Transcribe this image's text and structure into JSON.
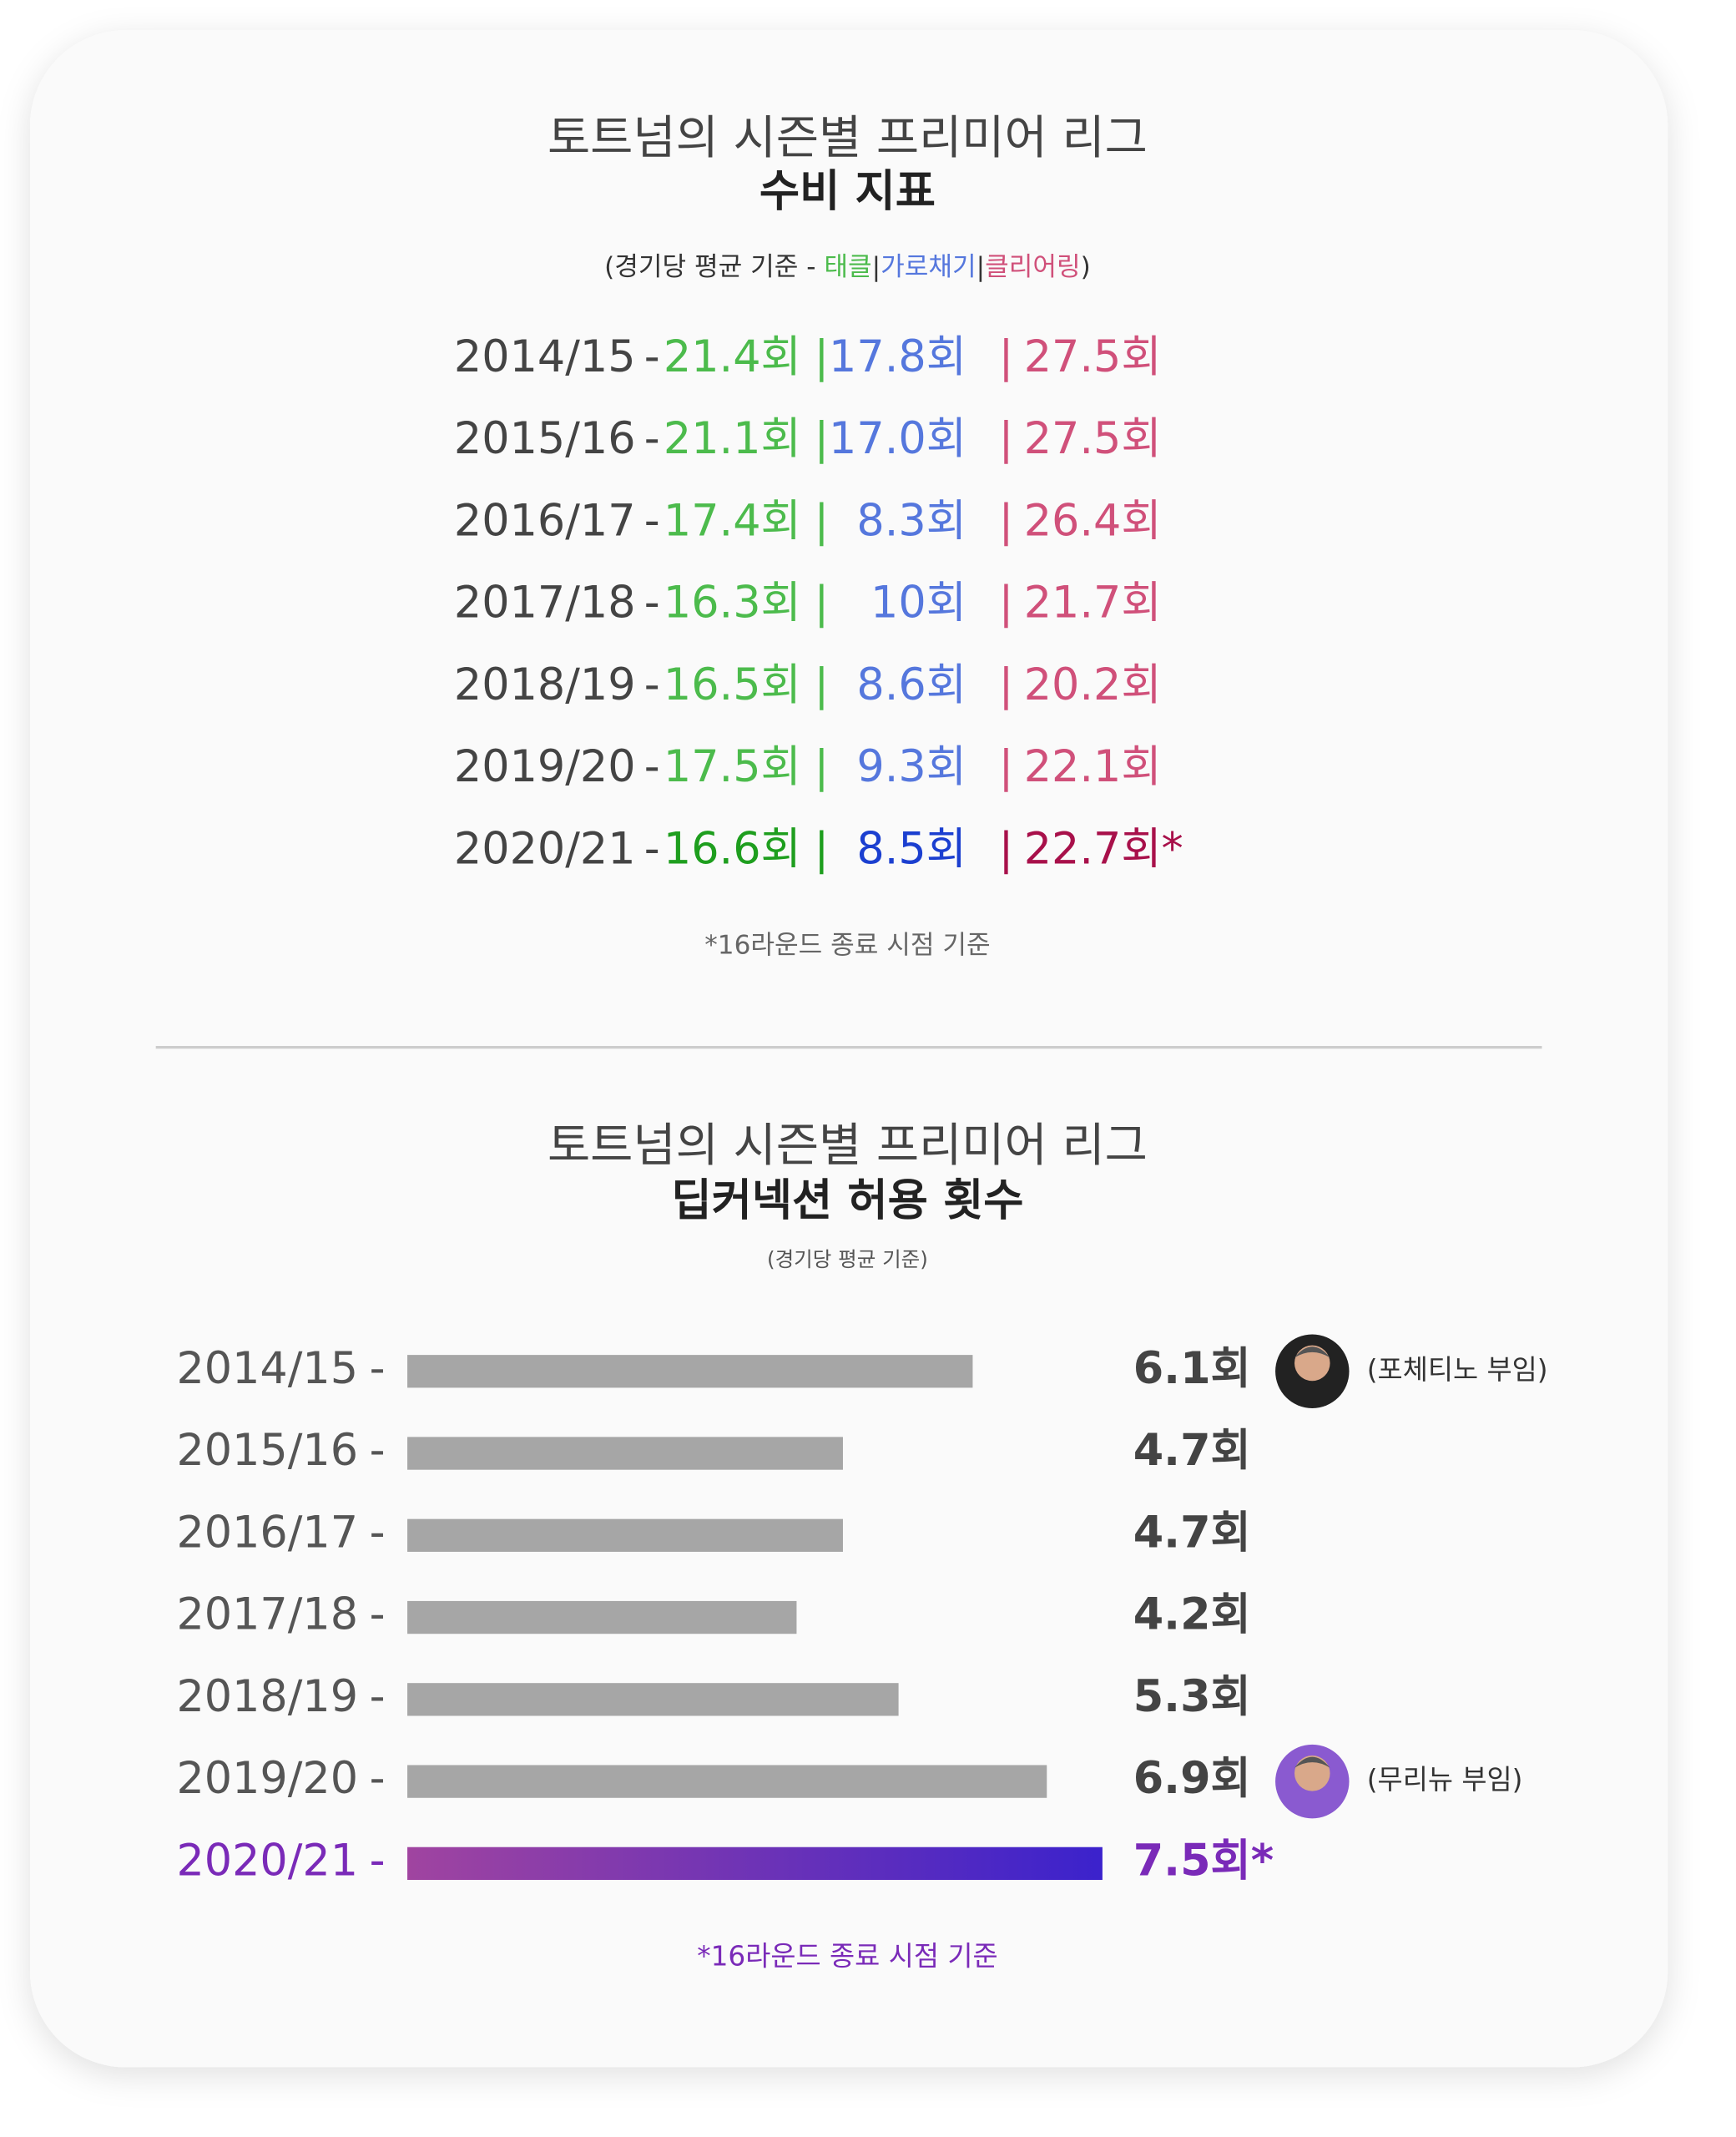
{
  "table": {
    "title": "토트넘의 시즌별 프리미어 리그",
    "subtitle": "수비 지표",
    "caption_prefix": "(경기당 평균 기준 - ",
    "columns": [
      "태클",
      "가로채기",
      "클리어링"
    ],
    "caption_suffix": ")",
    "separator": "|",
    "season_suffix": "-",
    "colors": [
      "#4cbb4c",
      "#5577dd",
      "#d0507a"
    ],
    "highlight_colors": [
      "#1e9e1e",
      "#1b3fd0",
      "#a8104a"
    ],
    "rows": [
      [
        "2014/15",
        "21.4회",
        "17.8회",
        "27.5회"
      ],
      [
        "2015/16",
        "21.1회",
        "17.0회",
        "27.5회"
      ],
      [
        "2016/17",
        "17.4회",
        "8.3회",
        "26.4회"
      ],
      [
        "2017/18",
        "16.3회",
        "10회",
        "21.7회"
      ],
      [
        "2018/19",
        "16.5회",
        "8.6회",
        "20.2회"
      ],
      [
        "2019/20",
        "17.5회",
        "9.3회",
        "22.1회"
      ],
      [
        "2020/21",
        "16.6회",
        "8.5회",
        "22.7회*"
      ]
    ],
    "footnote": "*16라운드 종료 시점 기준"
  },
  "chart_data": {
    "type": "bar",
    "title": "토트넘의 시즌별 프리미어 리그",
    "subtitle": "딥커넥션 허용 횟수",
    "caption": "(경기당 평균 기준)",
    "categories": [
      "2014/15",
      "2015/16",
      "2016/17",
      "2017/18",
      "2018/19",
      "2019/20",
      "2020/21"
    ],
    "category_suffix": "-",
    "values": [
      6.1,
      4.7,
      4.7,
      4.2,
      5.3,
      6.9,
      7.5
    ],
    "value_labels": [
      "6.1회",
      "4.7회",
      "4.7회",
      "4.2회",
      "5.3회",
      "6.9회",
      "7.5회*"
    ],
    "annotations": [
      "(포체티노 부임)",
      null,
      null,
      null,
      null,
      "(무리뉴 부임)",
      null
    ],
    "color": "#a6a6a6",
    "highlight": [
      false,
      false,
      false,
      false,
      false,
      false,
      true
    ],
    "highlight_gradient": [
      "#a044a0",
      "#3b22cc"
    ],
    "highlight_text_color": "#7a2ab8",
    "footnote": "*16라운드 종료 시점 기준"
  }
}
